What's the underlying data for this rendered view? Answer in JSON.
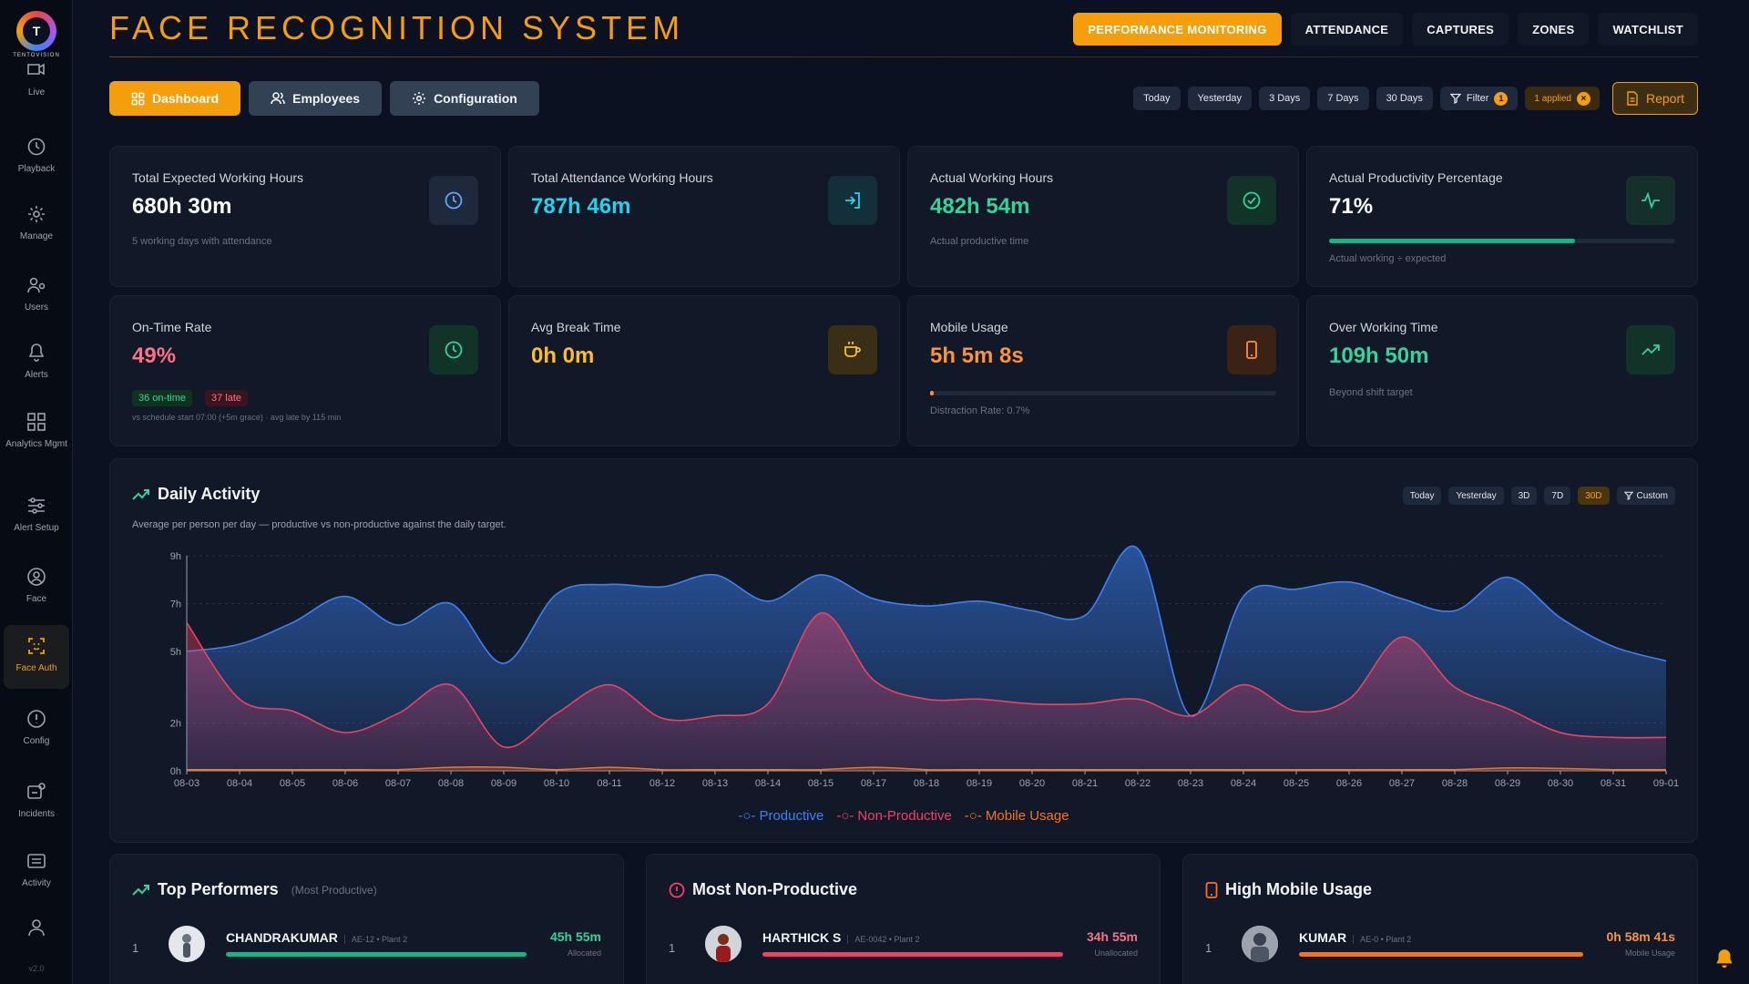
{
  "brand": {
    "logo_text": "TENTOVISION",
    "logo_glyph": "T"
  },
  "app_title": "FACE RECOGNITION SYSTEM",
  "sidebar": {
    "items": [
      {
        "label": "Live",
        "icon": "live-icon"
      },
      {
        "label": "Playback",
        "icon": "clock-icon"
      },
      {
        "label": "Manage",
        "icon": "gear-icon"
      },
      {
        "label": "Users",
        "icon": "users-icon"
      },
      {
        "label": "Alerts",
        "icon": "bell-icon"
      },
      {
        "label": "Analytics Mgmt",
        "icon": "grid-icon"
      },
      {
        "label": "Alert Setup",
        "icon": "sliders-icon"
      },
      {
        "label": "Face",
        "icon": "user-circle-icon"
      },
      {
        "label": "Face Auth",
        "icon": "face-scan-icon",
        "active": true
      },
      {
        "label": "Config",
        "icon": "alert-circle-icon"
      },
      {
        "label": "Incidents",
        "icon": "incident-icon"
      },
      {
        "label": "Activity",
        "icon": "activity-icon"
      },
      {
        "label": "",
        "icon": "profile-icon"
      }
    ],
    "version": "v2.0"
  },
  "top_nav": [
    "PERFORMANCE MONITORING",
    "ATTENDANCE",
    "CAPTURES",
    "ZONES",
    "WATCHLIST"
  ],
  "subtabs": [
    "Dashboard",
    "Employees",
    "Configuration"
  ],
  "ranges": [
    "Today",
    "Yesterday",
    "3 Days",
    "7 Days",
    "30 Days"
  ],
  "filter": {
    "label": "Filter",
    "count": "1",
    "applied": "1 applied"
  },
  "report_label": "Report",
  "kpis": [
    {
      "label": "Total Expected Working Hours",
      "value": "680h 30m",
      "sub": "5 working days with attendance",
      "color": "#ffffff",
      "icon": "clock-icon"
    },
    {
      "label": "Total Attendance Working Hours",
      "value": "787h 46m",
      "sub": "",
      "color": "#22d3ee",
      "icon": "login-icon"
    },
    {
      "label": "Actual Working Hours",
      "value": "482h 54m",
      "sub": "Actual productive time",
      "color": "#34d399",
      "icon": "check-circle-icon"
    },
    {
      "label": "Actual Productivity Percentage",
      "value": "71%",
      "sub": "Actual working ÷ expected",
      "color": "#ffffff",
      "icon": "pulse-icon",
      "progress": 0.71
    },
    {
      "label": "On-Time Rate",
      "value": "49%",
      "sub": "vs schedule start 07:00 (+5m grace) · avg late by 115 min",
      "color": "#fb7185",
      "icon": "clock-icon",
      "on_time": "36 on-time",
      "late": "37 late"
    },
    {
      "label": "Avg Break Time",
      "value": "0h 0m",
      "sub": "",
      "color": "#fbbf24",
      "icon": "coffee-icon"
    },
    {
      "label": "Mobile Usage",
      "value": "5h 5m 8s",
      "sub": "Distraction Rate: 0.7%",
      "color": "#fb923c",
      "icon": "phone-icon",
      "progress": 0.007
    },
    {
      "label": "Over Working Time",
      "value": "109h 50m",
      "sub": "Beyond shift target",
      "color": "#34d399",
      "icon": "trending-up-icon"
    }
  ],
  "daily": {
    "title": "Daily Activity",
    "desc": "Average per person per day — productive vs non-productive against the daily target.",
    "ranges": [
      "Today",
      "Yesterday",
      "3D",
      "7D",
      "30D",
      "Custom"
    ],
    "active_range": "30D"
  },
  "chart_data": {
    "type": "area",
    "categories": [
      "08-03",
      "08-04",
      "08-05",
      "08-06",
      "08-07",
      "08-08",
      "08-09",
      "08-10",
      "08-11",
      "08-12",
      "08-13",
      "08-14",
      "08-15",
      "08-17",
      "08-18",
      "08-19",
      "08-20",
      "08-21",
      "08-22",
      "08-23",
      "08-24",
      "08-25",
      "08-26",
      "08-27",
      "08-28",
      "08-29",
      "08-30",
      "08-31",
      "09-01"
    ],
    "y_ticks": [
      "0h",
      "2h",
      "5h",
      "7h",
      "9h"
    ],
    "ylim": [
      0,
      9
    ],
    "series": [
      {
        "name": "Productive",
        "color": "#3b82f6",
        "values": [
          5.0,
          5.3,
          6.2,
          7.3,
          6.1,
          7.0,
          4.5,
          7.4,
          7.8,
          7.7,
          8.2,
          7.1,
          8.2,
          7.2,
          6.9,
          7.1,
          6.7,
          6.5,
          9.3,
          2.3,
          7.3,
          7.6,
          7.9,
          7.2,
          6.7,
          8.1,
          6.4,
          5.2,
          4.6
        ]
      },
      {
        "name": "Non-Productive",
        "color": "#f43f5e",
        "values": [
          6.2,
          3.0,
          2.5,
          1.6,
          2.4,
          3.6,
          1.0,
          2.4,
          3.6,
          2.2,
          2.3,
          2.8,
          6.6,
          3.8,
          3.0,
          3.0,
          2.8,
          2.8,
          3.0,
          2.3,
          3.6,
          2.5,
          3.0,
          5.6,
          3.5,
          2.6,
          1.6,
          1.4,
          1.4
        ]
      },
      {
        "name": "Mobile Usage",
        "color": "#f97316",
        "values": [
          0.05,
          0.05,
          0.05,
          0.05,
          0.05,
          0.15,
          0.15,
          0.05,
          0.15,
          0.05,
          0.05,
          0.05,
          0.05,
          0.15,
          0.05,
          0.05,
          0.05,
          0.05,
          0.05,
          0.05,
          0.05,
          0.05,
          0.05,
          0.05,
          0.05,
          0.12,
          0.1,
          0.05,
          0.05
        ]
      }
    ]
  },
  "top_performers": {
    "title": "Top Performers",
    "subtitle": "(Most Productive)",
    "rows": [
      {
        "rank": "1",
        "name": "CHANDRAKUMAR",
        "meta": "AE-12 • Plant 2",
        "value": "45h 55m",
        "sub": "Allocated",
        "fill": 1.0
      }
    ]
  },
  "most_non_productive": {
    "title": "Most Non-Productive",
    "rows": [
      {
        "rank": "1",
        "name": "HARTHICK S",
        "meta": "AE-0042 • Plant 2",
        "value": "34h 55m",
        "sub": "Unallocated",
        "fill": 1.0
      }
    ]
  },
  "high_mobile": {
    "title": "High Mobile Usage",
    "rows": [
      {
        "rank": "1",
        "name": "KUMAR",
        "meta": "AE-0 • Plant 2",
        "value": "0h 58m 41s",
        "sub": "Mobile Usage",
        "fill": 1.0
      }
    ]
  }
}
